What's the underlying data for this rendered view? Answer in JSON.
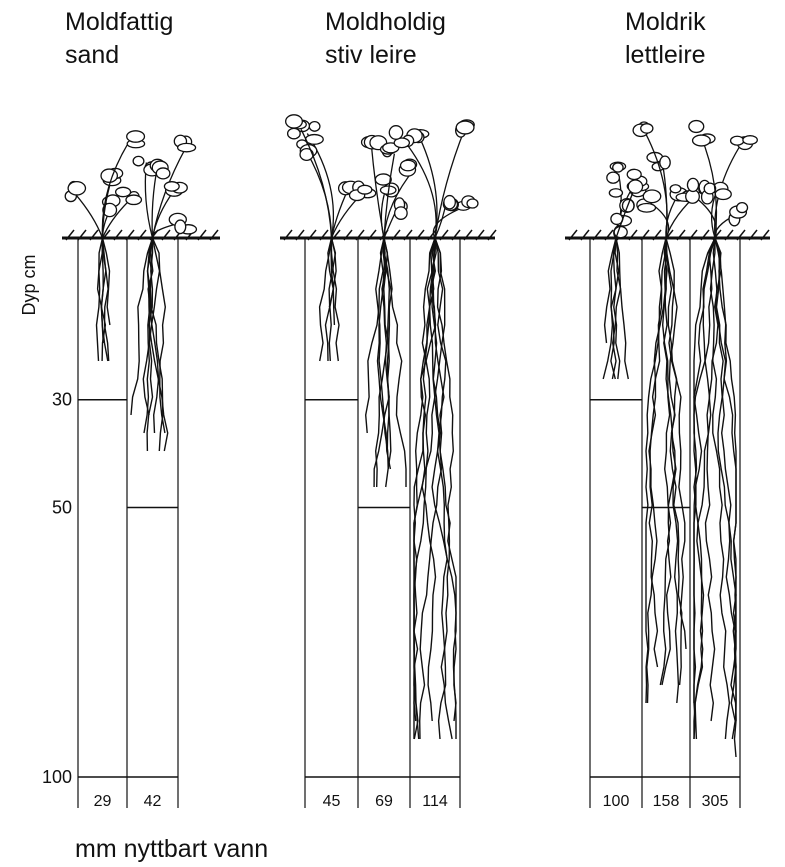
{
  "axis": {
    "label": "Dyp cm",
    "ticks": [
      30,
      50,
      100
    ]
  },
  "groups": [
    {
      "title": [
        "Moldfattig",
        "sand"
      ],
      "values": [
        29,
        42
      ]
    },
    {
      "title": [
        "Moldholdig",
        "stiv leire"
      ],
      "values": [
        45,
        69,
        114
      ]
    },
    {
      "title": [
        "Moldrik",
        "lettleire"
      ],
      "values": [
        100,
        158,
        305
      ]
    }
  ],
  "footer": "mm nyttbart vann"
}
